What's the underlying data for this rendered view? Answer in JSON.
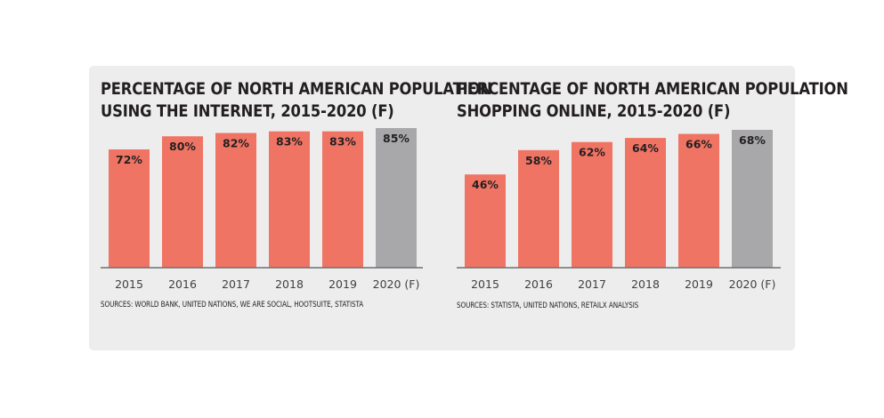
{
  "chart_data": [
    {
      "type": "bar",
      "title_lines": [
        "PERCENTAGE OF NORTH AMERICAN POPULATION",
        "USING THE INTERNET, 2015-2020 (F)"
      ],
      "categories": [
        "2015",
        "2016",
        "2017",
        "2018",
        "2019",
        "2020 (F)"
      ],
      "values": [
        72,
        80,
        82,
        83,
        83,
        85
      ],
      "value_labels": [
        "72%",
        "80%",
        "82%",
        "83%",
        "83%",
        "85%"
      ],
      "forecast_index": 5,
      "source": "SOURCES: WORLD BANK, UNITED NATIONS, WE ARE SOCIAL, HOOTSUITE, STATISTA",
      "colors": {
        "actual": "#f07464",
        "forecast": "#a8a8aa",
        "baseline": "#6d6e71"
      }
    },
    {
      "type": "bar",
      "title_lines": [
        "PERCENTAGE OF NORTH AMERICAN POPULATION",
        "SHOPPING ONLINE, 2015-2020 (F)"
      ],
      "categories": [
        "2015",
        "2016",
        "2017",
        "2018",
        "2019",
        "2020 (F)"
      ],
      "values": [
        46,
        58,
        62,
        64,
        66,
        68
      ],
      "value_labels": [
        "46%",
        "58%",
        "62%",
        "64%",
        "66%",
        "68%"
      ],
      "forecast_index": 5,
      "source": "SOURCES: STATISTA, UNITED NATIONS, RETAILX ANALYSIS",
      "colors": {
        "actual": "#f07464",
        "forecast": "#a8a8aa",
        "baseline": "#6d6e71"
      }
    }
  ]
}
